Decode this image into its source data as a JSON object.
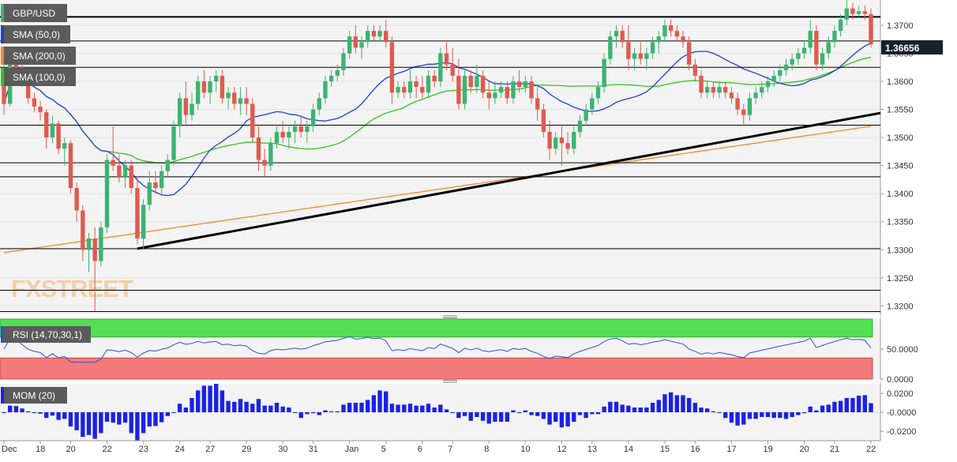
{
  "instrument": "GBP/USD",
  "indicators": {
    "sma50": "SMA (50,0)",
    "sma200": "SMA (200,0)",
    "sma100": "SMA (100,0)",
    "rsi": "RSI (14,70,30,1)",
    "mom": "MOM (20)"
  },
  "watermark": "FXSTREET",
  "colors": {
    "up": "#3cb371",
    "down": "#e05a4f",
    "sma50": "#1f3fd6",
    "sma100": "#33c41c",
    "sma200": "#f08a2c",
    "trendline": "#000000",
    "rsi_line": "#2a52d6",
    "rsi_overbought": "#52e052",
    "rsi_oversold": "#f47a7a",
    "mom_bars": "#1a22e6",
    "price_tag_bg": "#1a1f2e"
  },
  "chart_data": [
    {
      "type": "candlestick",
      "name": "price",
      "ylim": [
        1.3185,
        1.3745
      ],
      "y_ticks": [
        "1.3700",
        "1.3650",
        "1.3600",
        "1.3550",
        "1.3500",
        "1.3450",
        "1.3400",
        "1.3350",
        "1.3300",
        "1.3250",
        "1.3200"
      ],
      "current_price": "1.36656",
      "x_labels": [
        "Dec",
        "18",
        "20",
        "22",
        "23",
        "24",
        "27",
        "29",
        "30",
        "31",
        "Jan",
        "5",
        "6",
        "7",
        "8",
        "10",
        "12",
        "13",
        "14",
        "15",
        "16",
        "17",
        "19",
        "20",
        "21",
        "22"
      ],
      "horizontal_levels": [
        1.3715,
        1.3672,
        1.3625,
        1.3522,
        1.3455,
        1.343,
        1.3302,
        1.3228,
        1.319
      ],
      "trendlines": [
        {
          "from": {
            "bar": 22,
            "price": 1.3302
          },
          "to": {
            "bar": 160,
            "price": 1.3574
          }
        }
      ],
      "candles": [
        [
          1.361,
          1.364,
          1.354,
          1.356
        ],
        [
          1.356,
          1.364,
          1.3555,
          1.363
        ],
        [
          1.363,
          1.3645,
          1.36,
          1.3625
        ],
        [
          1.3625,
          1.364,
          1.359,
          1.36
        ],
        [
          1.36,
          1.361,
          1.356,
          1.357
        ],
        [
          1.357,
          1.358,
          1.3545,
          1.3555
        ],
        [
          1.3555,
          1.3565,
          1.353,
          1.3545
        ],
        [
          1.3545,
          1.355,
          1.348,
          1.35
        ],
        [
          1.35,
          1.354,
          1.349,
          1.3525
        ],
        [
          1.3525,
          1.353,
          1.347,
          1.348
        ],
        [
          1.348,
          1.35,
          1.345,
          1.349
        ],
        [
          1.349,
          1.3495,
          1.34,
          1.341
        ],
        [
          1.341,
          1.342,
          1.335,
          1.337
        ],
        [
          1.337,
          1.338,
          1.328,
          1.33
        ],
        [
          1.33,
          1.333,
          1.326,
          1.332
        ],
        [
          1.332,
          1.334,
          1.319,
          1.328
        ],
        [
          1.328,
          1.335,
          1.327,
          1.334
        ],
        [
          1.334,
          1.347,
          1.333,
          1.346
        ],
        [
          1.346,
          1.352,
          1.344,
          1.345
        ],
        [
          1.345,
          1.347,
          1.342,
          1.343
        ],
        [
          1.343,
          1.346,
          1.341,
          1.345
        ],
        [
          1.345,
          1.346,
          1.34,
          1.341
        ],
        [
          1.341,
          1.343,
          1.331,
          1.332
        ],
        [
          1.332,
          1.339,
          1.33,
          1.338
        ],
        [
          1.338,
          1.344,
          1.337,
          1.342
        ],
        [
          1.342,
          1.344,
          1.34,
          1.341
        ],
        [
          1.341,
          1.345,
          1.34,
          1.344
        ],
        [
          1.344,
          1.347,
          1.343,
          1.346
        ],
        [
          1.346,
          1.353,
          1.345,
          1.352
        ],
        [
          1.352,
          1.358,
          1.35,
          1.357
        ],
        [
          1.357,
          1.36,
          1.352,
          1.354
        ],
        [
          1.354,
          1.358,
          1.353,
          1.356
        ],
        [
          1.356,
          1.361,
          1.355,
          1.36
        ],
        [
          1.36,
          1.362,
          1.357,
          1.358
        ],
        [
          1.358,
          1.361,
          1.356,
          1.36
        ],
        [
          1.36,
          1.362,
          1.358,
          1.361
        ],
        [
          1.361,
          1.362,
          1.356,
          1.357
        ],
        [
          1.357,
          1.359,
          1.355,
          1.358
        ],
        [
          1.358,
          1.359,
          1.355,
          1.356
        ],
        [
          1.356,
          1.359,
          1.354,
          1.357
        ],
        [
          1.357,
          1.359,
          1.354,
          1.356
        ],
        [
          1.356,
          1.357,
          1.349,
          1.35
        ],
        [
          1.35,
          1.352,
          1.344,
          1.346
        ],
        [
          1.346,
          1.348,
          1.343,
          1.345
        ],
        [
          1.345,
          1.35,
          1.344,
          1.349
        ],
        [
          1.349,
          1.352,
          1.348,
          1.351
        ],
        [
          1.351,
          1.353,
          1.349,
          1.35
        ],
        [
          1.35,
          1.352,
          1.348,
          1.351
        ],
        [
          1.351,
          1.353,
          1.349,
          1.352
        ],
        [
          1.352,
          1.354,
          1.35,
          1.351
        ],
        [
          1.351,
          1.353,
          1.349,
          1.352
        ],
        [
          1.352,
          1.356,
          1.351,
          1.355
        ],
        [
          1.355,
          1.358,
          1.354,
          1.357
        ],
        [
          1.357,
          1.361,
          1.356,
          1.36
        ],
        [
          1.36,
          1.362,
          1.359,
          1.361
        ],
        [
          1.361,
          1.363,
          1.36,
          1.362
        ],
        [
          1.362,
          1.366,
          1.361,
          1.365
        ],
        [
          1.365,
          1.369,
          1.364,
          1.368
        ],
        [
          1.368,
          1.37,
          1.365,
          1.366
        ],
        [
          1.366,
          1.368,
          1.364,
          1.367
        ],
        [
          1.367,
          1.37,
          1.366,
          1.369
        ],
        [
          1.369,
          1.37,
          1.367,
          1.368
        ],
        [
          1.368,
          1.37,
          1.367,
          1.369
        ],
        [
          1.369,
          1.371,
          1.366,
          1.367
        ],
        [
          1.367,
          1.368,
          1.356,
          1.358
        ],
        [
          1.358,
          1.36,
          1.357,
          1.359
        ],
        [
          1.359,
          1.36,
          1.357,
          1.358
        ],
        [
          1.358,
          1.362,
          1.357,
          1.36
        ],
        [
          1.36,
          1.361,
          1.357,
          1.359
        ],
        [
          1.359,
          1.361,
          1.357,
          1.358
        ],
        [
          1.358,
          1.362,
          1.357,
          1.361
        ],
        [
          1.361,
          1.362,
          1.359,
          1.36
        ],
        [
          1.36,
          1.366,
          1.359,
          1.365
        ],
        [
          1.365,
          1.367,
          1.362,
          1.363
        ],
        [
          1.363,
          1.366,
          1.36,
          1.361
        ],
        [
          1.361,
          1.364,
          1.355,
          1.356
        ],
        [
          1.356,
          1.362,
          1.355,
          1.361
        ],
        [
          1.361,
          1.362,
          1.358,
          1.359
        ],
        [
          1.359,
          1.363,
          1.358,
          1.361
        ],
        [
          1.361,
          1.362,
          1.357,
          1.358
        ],
        [
          1.358,
          1.36,
          1.355,
          1.357
        ],
        [
          1.357,
          1.36,
          1.356,
          1.358
        ],
        [
          1.358,
          1.36,
          1.357,
          1.359
        ],
        [
          1.359,
          1.36,
          1.356,
          1.357
        ],
        [
          1.357,
          1.361,
          1.356,
          1.36
        ],
        [
          1.36,
          1.362,
          1.358,
          1.359
        ],
        [
          1.359,
          1.361,
          1.358,
          1.36
        ],
        [
          1.36,
          1.361,
          1.356,
          1.357
        ],
        [
          1.357,
          1.359,
          1.353,
          1.355
        ],
        [
          1.355,
          1.356,
          1.35,
          1.351
        ],
        [
          1.351,
          1.353,
          1.346,
          1.348
        ],
        [
          1.348,
          1.351,
          1.347,
          1.35
        ],
        [
          1.35,
          1.352,
          1.345,
          1.349
        ],
        [
          1.349,
          1.351,
          1.347,
          1.348
        ],
        [
          1.348,
          1.352,
          1.347,
          1.351
        ],
        [
          1.351,
          1.354,
          1.35,
          1.353
        ],
        [
          1.353,
          1.356,
          1.352,
          1.355
        ],
        [
          1.355,
          1.358,
          1.354,
          1.357
        ],
        [
          1.357,
          1.36,
          1.356,
          1.359
        ],
        [
          1.359,
          1.365,
          1.358,
          1.364
        ],
        [
          1.364,
          1.369,
          1.363,
          1.368
        ],
        [
          1.368,
          1.37,
          1.366,
          1.369
        ],
        [
          1.369,
          1.37,
          1.366,
          1.367
        ],
        [
          1.367,
          1.37,
          1.362,
          1.364
        ],
        [
          1.364,
          1.366,
          1.362,
          1.365
        ],
        [
          1.365,
          1.367,
          1.363,
          1.364
        ],
        [
          1.364,
          1.366,
          1.362,
          1.365
        ],
        [
          1.365,
          1.368,
          1.364,
          1.367
        ],
        [
          1.367,
          1.369,
          1.365,
          1.368
        ],
        [
          1.368,
          1.371,
          1.367,
          1.37
        ],
        [
          1.37,
          1.371,
          1.368,
          1.369
        ],
        [
          1.369,
          1.37,
          1.367,
          1.368
        ],
        [
          1.368,
          1.369,
          1.366,
          1.367
        ],
        [
          1.367,
          1.368,
          1.362,
          1.363
        ],
        [
          1.363,
          1.364,
          1.36,
          1.361
        ],
        [
          1.361,
          1.362,
          1.357,
          1.358
        ],
        [
          1.358,
          1.36,
          1.357,
          1.359
        ],
        [
          1.359,
          1.36,
          1.357,
          1.358
        ],
        [
          1.358,
          1.36,
          1.357,
          1.359
        ],
        [
          1.359,
          1.36,
          1.357,
          1.358
        ],
        [
          1.358,
          1.359,
          1.356,
          1.357
        ],
        [
          1.357,
          1.358,
          1.354,
          1.355
        ],
        [
          1.355,
          1.356,
          1.352,
          1.354
        ],
        [
          1.354,
          1.358,
          1.353,
          1.357
        ],
        [
          1.357,
          1.359,
          1.356,
          1.358
        ],
        [
          1.358,
          1.36,
          1.357,
          1.359
        ],
        [
          1.359,
          1.361,
          1.358,
          1.36
        ],
        [
          1.36,
          1.362,
          1.359,
          1.361
        ],
        [
          1.361,
          1.363,
          1.36,
          1.362
        ],
        [
          1.362,
          1.364,
          1.361,
          1.363
        ],
        [
          1.363,
          1.365,
          1.362,
          1.364
        ],
        [
          1.364,
          1.366,
          1.363,
          1.365
        ],
        [
          1.365,
          1.367,
          1.364,
          1.366
        ],
        [
          1.366,
          1.371,
          1.365,
          1.369
        ],
        [
          1.369,
          1.37,
          1.362,
          1.363
        ],
        [
          1.363,
          1.366,
          1.362,
          1.365
        ],
        [
          1.365,
          1.368,
          1.364,
          1.367
        ],
        [
          1.367,
          1.37,
          1.366,
          1.369
        ],
        [
          1.369,
          1.372,
          1.368,
          1.371
        ],
        [
          1.371,
          1.3745,
          1.37,
          1.373
        ],
        [
          1.373,
          1.374,
          1.371,
          1.372
        ],
        [
          1.372,
          1.3735,
          1.3715,
          1.3725
        ],
        [
          1.3725,
          1.3735,
          1.371,
          1.372
        ],
        [
          1.372,
          1.373,
          1.366,
          1.3666
        ]
      ]
    },
    {
      "type": "line",
      "name": "rsi",
      "ylim": [
        0,
        100
      ],
      "y_ticks": [
        "50.0000",
        "0.0000"
      ],
      "overbought": 70,
      "oversold": 30
    },
    {
      "type": "bar",
      "name": "momentum",
      "ylim": [
        -0.03,
        0.03
      ],
      "y_ticks": [
        "0.0200",
        "-0.0000",
        "-0.0200"
      ]
    }
  ]
}
